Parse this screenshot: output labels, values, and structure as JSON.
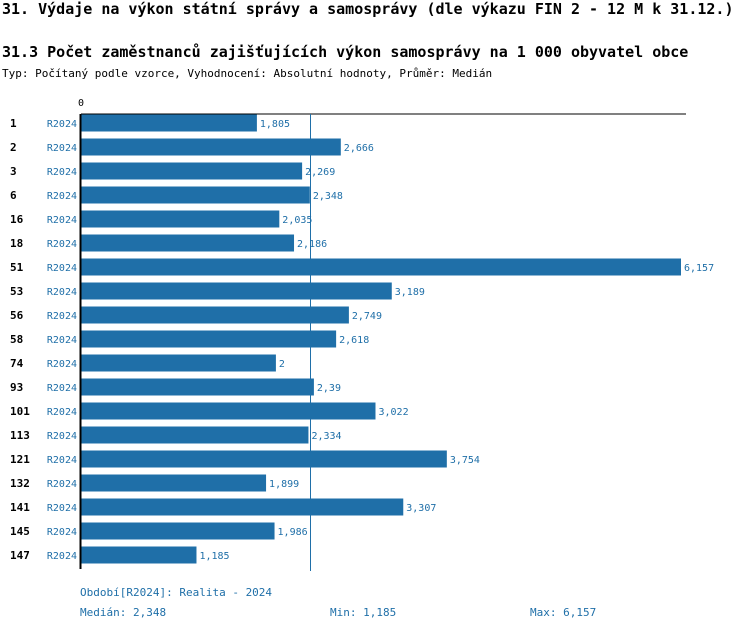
{
  "header": {
    "title": "31. Výdaje na výkon státní správy a samosprávy (dle výkazu FIN 2 - 12 M k 31.12.)",
    "subtitle": "31.3 Počet zaměstnanců zajišťujících výkon samosprávy na 1 000 obyvatel obce",
    "meta": "Typ: Počítaný podle vzorce, Vyhodnocení: Absolutní hodnoty, Průměr: Medián"
  },
  "chart_data": {
    "type": "bar",
    "orientation": "horizontal",
    "axis_zero_label": "0",
    "period_label": "R2024",
    "categories": [
      "1",
      "2",
      "3",
      "6",
      "16",
      "18",
      "51",
      "53",
      "56",
      "58",
      "74",
      "93",
      "101",
      "113",
      "121",
      "132",
      "141",
      "145",
      "147"
    ],
    "values": [
      1.805,
      2.666,
      2.269,
      2.348,
      2.035,
      2.186,
      6.157,
      3.189,
      2.749,
      2.618,
      2,
      2.39,
      3.022,
      2.334,
      3.754,
      1.899,
      3.307,
      1.986,
      1.185
    ],
    "value_labels": [
      "1,805",
      "2,666",
      "2,269",
      "2,348",
      "2,035",
      "2,186",
      "6,157",
      "3,189",
      "2,749",
      "2,618",
      "2",
      "2,39",
      "3,022",
      "2,334",
      "3,754",
      "1,899",
      "3,307",
      "1,986",
      "1,185"
    ],
    "xlim": [
      0,
      6.157
    ],
    "median": 2.348,
    "colors": {
      "bar": "#1f6fa8",
      "label": "#1f6fa8",
      "axis": "#000000"
    }
  },
  "footer": {
    "period": "Období[R2024]: Realita - 2024",
    "median": "Medián: 2,348",
    "min": "Min: 1,185",
    "max": "Max: 6,157"
  }
}
